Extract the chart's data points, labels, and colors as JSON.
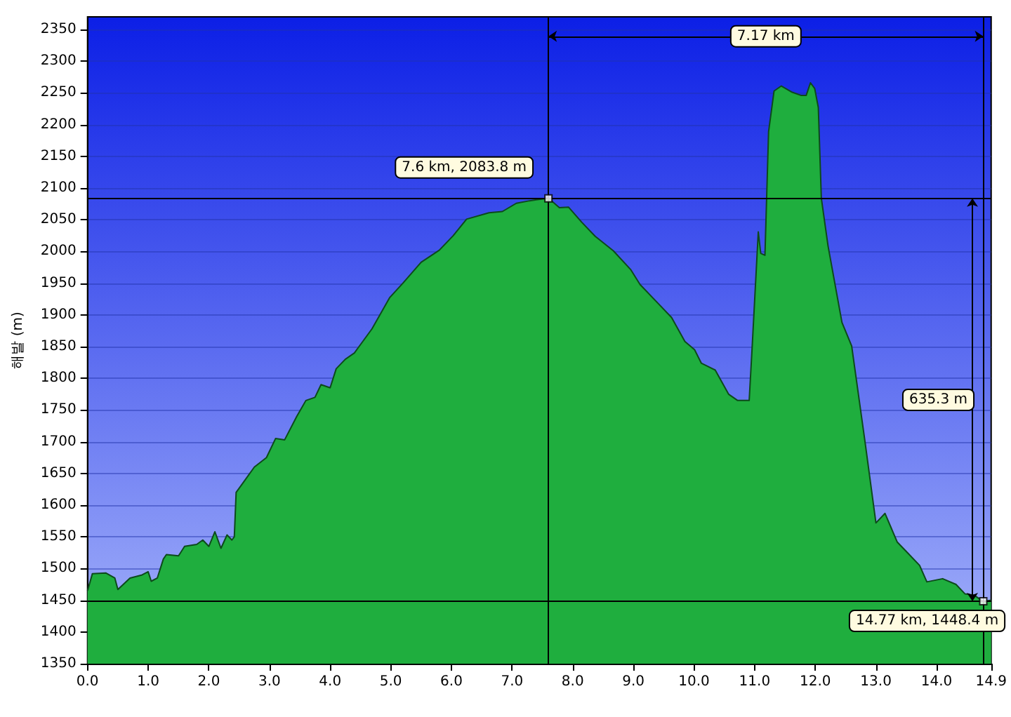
{
  "chart_data": {
    "type": "area",
    "ylabel": "해발 (m)",
    "series": [
      {
        "color": "#1fae3e",
        "x": [
          0,
          0.08,
          0.3,
          0.45,
          0.5,
          0.7,
          0.9,
          1.0,
          1.05,
          1.15,
          1.25,
          1.3,
          1.5,
          1.6,
          1.8,
          1.9,
          2.0,
          2.1,
          2.2,
          2.3,
          2.38,
          2.42,
          2.45,
          2.6,
          2.75,
          2.95,
          3.1,
          3.25,
          3.45,
          3.6,
          3.75,
          3.85,
          4.0,
          4.1,
          4.25,
          4.4,
          4.69,
          4.98,
          5.2,
          5.5,
          5.8,
          6.03,
          6.25,
          6.62,
          6.84,
          7.07,
          7.29,
          7.6,
          7.78,
          7.93,
          8.15,
          8.37,
          8.67,
          8.96,
          9.11,
          9.41,
          9.63,
          9.85,
          10.01,
          10.12,
          10.35,
          10.57,
          10.72,
          10.91,
          10.96,
          11.06,
          11.1,
          11.17,
          11.23,
          11.32,
          11.44,
          11.62,
          11.77,
          11.85,
          11.92,
          11.99,
          12.05,
          12.1,
          12.21,
          12.44,
          12.6,
          12.82,
          13.0,
          13.15,
          13.35,
          13.5,
          13.72,
          13.84,
          14.1,
          14.32,
          14.47,
          14.62,
          14.77,
          14.9
        ],
        "values": [
          1465,
          1492,
          1493,
          1485,
          1467,
          1485,
          1490,
          1495,
          1480,
          1485,
          1515,
          1522,
          1520,
          1535,
          1538,
          1545,
          1535,
          1558,
          1532,
          1553,
          1545,
          1550,
          1620,
          1640,
          1660,
          1675,
          1705,
          1703,
          1740,
          1765,
          1770,
          1790,
          1785,
          1815,
          1830,
          1840,
          1878,
          1927,
          1950,
          1983,
          2002,
          2025,
          2051,
          2061,
          2063,
          2076,
          2080,
          2084,
          2069,
          2070,
          2046,
          2024,
          2001,
          1971,
          1948,
          1918,
          1896,
          1858,
          1845,
          1824,
          1813,
          1775,
          1765,
          1765,
          1851,
          2031,
          1997,
          1994,
          2189,
          2253,
          2261,
          2251,
          2246,
          2246,
          2266,
          2257,
          2227,
          2084,
          2009,
          1888,
          1851,
          1700,
          1572,
          1587,
          1542,
          1527,
          1505,
          1479,
          1484,
          1475,
          1460,
          1458,
          1448,
          1450
        ]
      }
    ],
    "xlim": [
      0,
      14.9
    ],
    "xticks": [
      {
        "value": 0,
        "label": "0.0"
      },
      {
        "value": 1,
        "label": "1.0"
      },
      {
        "value": 2,
        "label": "2.0"
      },
      {
        "value": 3,
        "label": "3.0"
      },
      {
        "value": 4,
        "label": "4.0"
      },
      {
        "value": 5,
        "label": "5.0"
      },
      {
        "value": 6,
        "label": "6.0"
      },
      {
        "value": 7,
        "label": "7.0"
      },
      {
        "value": 8,
        "label": "8.0"
      },
      {
        "value": 9,
        "label": "9.0"
      },
      {
        "value": 10,
        "label": "10.0"
      },
      {
        "value": 11,
        "label": "11.0"
      },
      {
        "value": 12,
        "label": "12.0"
      },
      {
        "value": 13,
        "label": "13.0"
      },
      {
        "value": 14,
        "label": "14.0"
      },
      14.9
    ],
    "ylim": [
      1350,
      2370
    ],
    "yticks": [
      1350,
      1400,
      1450,
      1500,
      1550,
      1600,
      1650,
      1700,
      1750,
      1800,
      1850,
      1900,
      1950,
      2000,
      2050,
      2100,
      2150,
      2200,
      2250,
      2300,
      2350
    ],
    "grid": "y",
    "marker": "none",
    "ref_lines": [
      {
        "axis": "x",
        "value": 7.6,
        "color": "#000000"
      },
      {
        "axis": "x",
        "value": 14.77,
        "color": "#000000"
      },
      {
        "axis": "y",
        "value": 2083.8,
        "color": "#000000"
      },
      {
        "axis": "y",
        "value": 1448.4,
        "color": "#000000"
      }
    ],
    "annotations": [
      {
        "text": "7.6 km, 2083.8 m",
        "x": 7.6,
        "y": 2083.8
      },
      {
        "text": "14.77 km, 1448.4 m",
        "x": 14.77,
        "y": 1448.4
      },
      "7.17 km",
      "635.3 m"
    ]
  }
}
